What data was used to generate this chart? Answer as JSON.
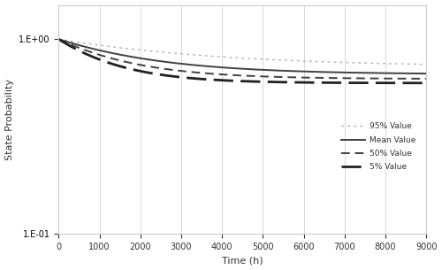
{
  "title": "",
  "xlabel": "Time (h)",
  "ylabel": "State Probability",
  "xlim": [
    0,
    9000
  ],
  "ylim_log": [
    0.1,
    1.5
  ],
  "x_ticks": [
    0,
    1000,
    2000,
    3000,
    4000,
    5000,
    6000,
    7000,
    8000,
    9000
  ],
  "series": {
    "p95": {
      "label": "95% Value",
      "color": "#b0b0b0",
      "linestyle": "dotted",
      "linewidth": 1.0,
      "ss": 0.72,
      "lam": 0.00028
    },
    "mean": {
      "label": "Mean Value",
      "color": "#404040",
      "linestyle": "solid",
      "linewidth": 1.4,
      "ss": 0.66,
      "lam": 0.00045
    },
    "p50": {
      "label": "50% Value",
      "color": "#404040",
      "linestyle": "dashed",
      "linewidth": 1.4,
      "ss": 0.625,
      "lam": 0.0006
    },
    "p5": {
      "label": "5% Value",
      "color": "#202020",
      "linestyle": "dashed",
      "linewidth": 2.0,
      "ss": 0.595,
      "lam": 0.00075
    }
  },
  "grid_color": "#d8d8d8",
  "background_color": "#ffffff",
  "ytick_labels": [
    "1.E-01",
    "1.E+00"
  ],
  "ytick_values": [
    0.1,
    1.0
  ]
}
